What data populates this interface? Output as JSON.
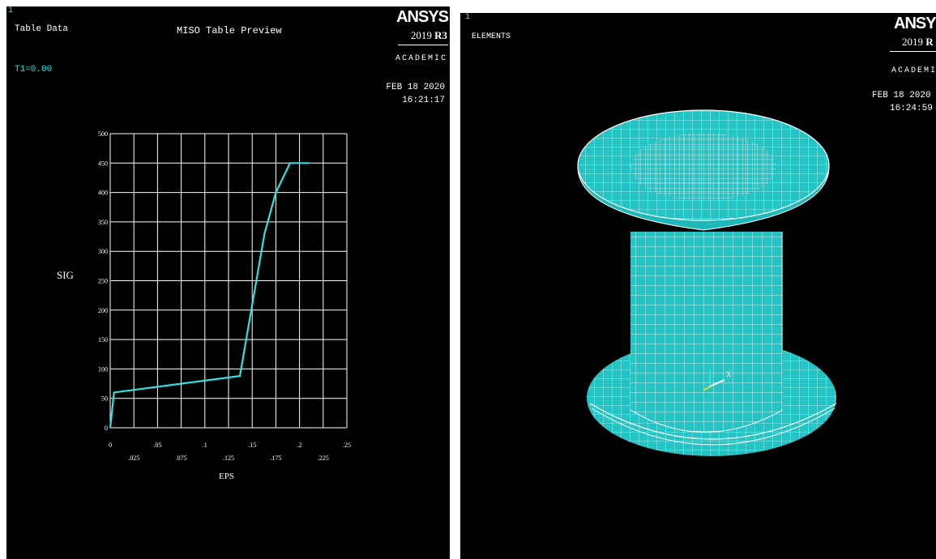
{
  "left_window": {
    "window_number": "1",
    "plot_label": "Table Data",
    "plot_title": "MISO Table Preview",
    "temperature_label": "T1=0.00",
    "logo": {
      "brand": "ANSYS",
      "release_year": "2019",
      "release_tag": "R3",
      "license": "ACADEMIC"
    },
    "date": "FEB 18 2020",
    "time": "16:21:17"
  },
  "right_window": {
    "window_number": "1",
    "plot_label": "ELEMENTS",
    "logo": {
      "brand": "ANSYS",
      "release_year": "2019",
      "release_tag": "R",
      "license": "ACADEMI"
    },
    "date": "FEB 18 2020",
    "time": "16:24:59",
    "triad_x_label": "X",
    "model": "spool-shaped meshed solid (two flanges + cylindrical core)"
  },
  "colors": {
    "background": "#000000",
    "curve": "#33e0e0",
    "grid": "#ffffff",
    "mesh_fill": "#25c4c4",
    "mesh_lines": "#ffffff"
  },
  "chart_data": {
    "type": "line",
    "title": "MISO Table Preview",
    "xlabel": "EPS",
    "ylabel": "SIG",
    "xlim": [
      0,
      0.25
    ],
    "ylim": [
      0,
      500
    ],
    "x_ticks_top": [
      "0",
      ".05",
      ".1",
      ".15",
      ".2",
      ".25"
    ],
    "x_ticks_bottom": [
      ".025",
      ".075",
      ".125",
      ".175",
      ".225"
    ],
    "y_ticks": [
      "0",
      "50",
      "100",
      "150",
      "200",
      "250",
      "300",
      "350",
      "400",
      "450",
      "500"
    ],
    "grid": true,
    "series": [
      {
        "x": [
          0,
          0.004,
          0.137,
          0.163,
          0.175,
          0.19,
          0.21
        ],
        "y": [
          0,
          60,
          88,
          330,
          400,
          450,
          450
        ]
      }
    ]
  }
}
